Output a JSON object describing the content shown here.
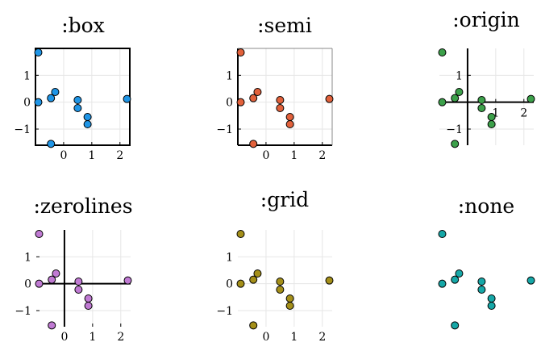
{
  "chart_data": [
    {
      "type": "scatter",
      "title": ":box",
      "frame": "box",
      "color": "#1f95e6",
      "x": [
        -0.9,
        -0.9,
        -0.45,
        -0.45,
        -0.3,
        0.5,
        0.5,
        0.85,
        0.85,
        2.25
      ],
      "y": [
        1.85,
        0.0,
        -1.55,
        0.15,
        0.38,
        0.08,
        -0.22,
        -0.55,
        -0.82,
        0.12
      ],
      "xticks": [
        0,
        1,
        2
      ],
      "yticks": [
        1,
        0,
        -1
      ],
      "xlim": [
        -1.0,
        2.35
      ],
      "ylim": [
        -1.6,
        2.0
      ],
      "grid": true
    },
    {
      "type": "scatter",
      "title": ":semi",
      "frame": "semi",
      "color": "#e2613b",
      "x": [
        -0.9,
        -0.9,
        -0.45,
        -0.45,
        -0.3,
        0.5,
        0.5,
        0.85,
        0.85,
        2.25
      ],
      "y": [
        1.85,
        0.0,
        -1.55,
        0.15,
        0.38,
        0.08,
        -0.22,
        -0.55,
        -0.82,
        0.12
      ],
      "xticks": [
        0,
        1,
        2
      ],
      "yticks": [
        1,
        0,
        -1
      ],
      "xlim": [
        -1.0,
        2.35
      ],
      "ylim": [
        -1.6,
        2.0
      ],
      "grid": true
    },
    {
      "type": "scatter",
      "title": ":origin",
      "frame": "origin",
      "color": "#3ca04a",
      "x": [
        -0.9,
        -0.9,
        -0.45,
        -0.45,
        -0.3,
        0.5,
        0.5,
        0.85,
        0.85,
        2.25
      ],
      "y": [
        1.85,
        0.0,
        -1.55,
        0.15,
        0.38,
        0.08,
        -0.22,
        -0.55,
        -0.82,
        0.12
      ],
      "xticks": [
        1,
        2
      ],
      "yticks": [
        1,
        -1
      ],
      "xlim": [
        -1.0,
        2.35
      ],
      "ylim": [
        -1.6,
        2.0
      ],
      "grid": true
    },
    {
      "type": "scatter",
      "title": ":zerolines",
      "frame": "zerolines",
      "color": "#c07ad3",
      "x": [
        -0.9,
        -0.9,
        -0.45,
        -0.45,
        -0.3,
        0.5,
        0.5,
        0.85,
        0.85,
        2.25
      ],
      "y": [
        1.85,
        0.0,
        -1.55,
        0.15,
        0.38,
        0.08,
        -0.22,
        -0.55,
        -0.82,
        0.12
      ],
      "xticks": [
        0,
        1,
        2
      ],
      "yticks": [
        1,
        0,
        -1
      ],
      "xlim": [
        -1.0,
        2.35
      ],
      "ylim": [
        -1.6,
        2.0
      ],
      "grid": true
    },
    {
      "type": "scatter",
      "title": ":grid",
      "frame": "grid",
      "color": "#a48f19",
      "x": [
        -0.9,
        -0.9,
        -0.45,
        -0.45,
        -0.3,
        0.5,
        0.5,
        0.85,
        0.85,
        2.25
      ],
      "y": [
        1.85,
        0.0,
        -1.55,
        0.15,
        0.38,
        0.08,
        -0.22,
        -0.55,
        -0.82,
        0.12
      ],
      "xticks": [
        0,
        1,
        2
      ],
      "yticks": [
        1,
        0,
        -1
      ],
      "xlim": [
        -1.0,
        2.35
      ],
      "ylim": [
        -1.6,
        2.0
      ],
      "grid": true
    },
    {
      "type": "scatter",
      "title": ":none",
      "frame": "none",
      "color": "#16a7a7",
      "x": [
        -0.9,
        -0.9,
        -0.45,
        -0.45,
        -0.3,
        0.5,
        0.5,
        0.85,
        0.85,
        2.25
      ],
      "y": [
        1.85,
        0.0,
        -1.55,
        0.15,
        0.38,
        0.08,
        -0.22,
        -0.55,
        -0.82,
        0.12
      ],
      "xticks": [],
      "yticks": [],
      "xlim": [
        -1.0,
        2.35
      ],
      "ylim": [
        -1.6,
        2.0
      ],
      "grid": false
    }
  ]
}
